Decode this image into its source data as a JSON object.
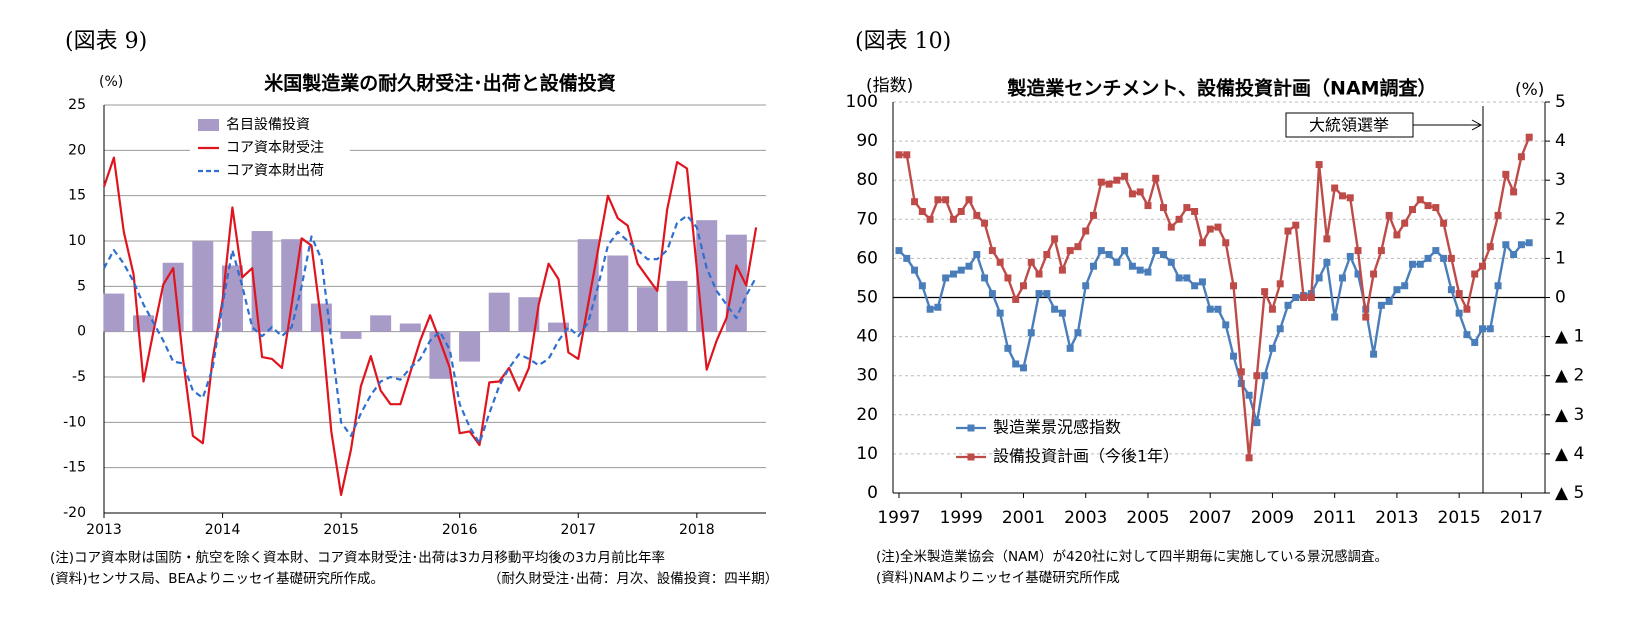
{
  "chart_data": [
    {
      "type": "combo",
      "figure_label": "(図表 9)",
      "title": "米国製造業の耐久財受注･出荷と設備投資",
      "y_label": "(%)",
      "notes": [
        "(注)コア資本財は国防・航空を除く資本財、コア資本財受注･出荷は3カ月移動平均後の3カ月前比年率",
        "(資料)センサス局、BEAよりニッセイ基礎研究所作成。",
        "（耐久財受注･出荷：月次、設備投資：四半期）"
      ],
      "categories": [
        "2013",
        null,
        null,
        null,
        null,
        null,
        null,
        null,
        null,
        null,
        null,
        null,
        "2014",
        null,
        null,
        null,
        null,
        null,
        null,
        null,
        null,
        null,
        null,
        null,
        "2015",
        null,
        null,
        null,
        null,
        null,
        null,
        null,
        null,
        null,
        null,
        null,
        "2016",
        null,
        null,
        null,
        null,
        null,
        null,
        null,
        null,
        null,
        null,
        null,
        "2017",
        null,
        null,
        null,
        null,
        null,
        null,
        null,
        null,
        null,
        null,
        null,
        "2018",
        null,
        null,
        null,
        null,
        null,
        null
      ],
      "ylim": [
        -20,
        25
      ],
      "yticks": [
        -20,
        -15,
        -10,
        -5,
        0,
        5,
        10,
        15,
        20,
        25
      ],
      "grid": true,
      "legend": "upper left",
      "series": [
        {
          "name": "名目設備投資",
          "kind": "bar",
          "color": "#a99bc8",
          "values": [
            null,
            4.2,
            null,
            null,
            1.8,
            null,
            null,
            7.6,
            null,
            null,
            10,
            null,
            null,
            7.3,
            null,
            null,
            11.1,
            null,
            null,
            10.2,
            null,
            null,
            3.1,
            null,
            null,
            -0.8,
            null,
            null,
            1.8,
            null,
            null,
            0.9,
            null,
            null,
            -5.2,
            null,
            null,
            -3.3,
            null,
            null,
            4.3,
            null,
            null,
            3.8,
            null,
            null,
            1.0,
            null,
            null,
            10.2,
            null,
            null,
            8.4,
            null,
            null,
            4.9,
            null,
            null,
            5.6,
            null,
            null,
            12.3,
            null,
            null,
            10.7,
            null,
            null
          ]
        },
        {
          "name": "コア資本財受注",
          "kind": "line",
          "color": "#e0141e",
          "values": [
            16,
            19.2,
            11,
            6.3,
            -5.5,
            0,
            5.2,
            7,
            -3,
            -11.5,
            -12.3,
            -3,
            3.5,
            13.7,
            6,
            7,
            -2.8,
            -3,
            -4,
            3,
            10.3,
            9.5,
            1,
            -11,
            -18,
            -13,
            -6,
            -2.7,
            -6.5,
            -8,
            -8,
            -4.5,
            -1,
            1.8,
            -1,
            -4,
            -11.2,
            -11,
            -12.5,
            -5.6,
            -5.5,
            -4,
            -6.5,
            -4,
            3,
            7.5,
            5.8,
            -2.3,
            -3,
            3,
            9,
            15,
            12.5,
            11.7,
            7.5,
            6,
            4.5,
            13.5,
            18.7,
            18,
            7,
            -4.2,
            -1,
            1.5,
            7.3,
            5.1,
            11.5
          ]
        },
        {
          "name": "コア資本財出荷",
          "kind": "line",
          "dash": true,
          "color": "#2f6fd0",
          "values": [
            7,
            9,
            7.5,
            5.5,
            3,
            1,
            -1,
            -3.3,
            -3.5,
            -6.5,
            -7.3,
            -4,
            3,
            9,
            5,
            0.5,
            -0.5,
            0.5,
            -0.5,
            0.5,
            5,
            10.5,
            8,
            -1,
            -10,
            -11.5,
            -9,
            -7,
            -5.5,
            -5,
            -5.3,
            -4,
            -3,
            -1,
            0,
            -2,
            -8,
            -10.5,
            -12.3,
            -9,
            -6,
            -4,
            -2.5,
            -3,
            -3.7,
            -3,
            -1,
            0.5,
            -0.5,
            1,
            5,
            9.5,
            11,
            10,
            9,
            8,
            8,
            9,
            12,
            12.8,
            11.5,
            7,
            4.5,
            3,
            1.5,
            4,
            6
          ]
        }
      ]
    },
    {
      "type": "line",
      "figure_label": "(図表 10)",
      "title": "製造業センチメント、設備投資計画（NAM調査）",
      "y_label": "(指数)",
      "y2_label": "(%)",
      "annotation": "大統領選挙",
      "notes": [
        "(注)全米製造業協会（NAM）が420社に対して四半期毎に実施している景況感調査。",
        "(資料)NAMよりニッセイ基礎研究所作成"
      ],
      "categories": [
        "1997",
        null,
        null,
        null,
        null,
        null,
        null,
        null,
        "1999",
        null,
        null,
        null,
        null,
        null,
        null,
        null,
        "2001",
        null,
        null,
        null,
        null,
        null,
        null,
        null,
        "2003",
        null,
        null,
        null,
        null,
        null,
        null,
        null,
        "2005",
        null,
        null,
        null,
        null,
        null,
        null,
        null,
        "2007",
        null,
        null,
        null,
        null,
        null,
        null,
        null,
        "2009",
        null,
        null,
        null,
        null,
        null,
        null,
        null,
        "2011",
        null,
        null,
        null,
        null,
        null,
        null,
        null,
        "2013",
        null,
        null,
        null,
        null,
        null,
        null,
        null,
        "2015",
        null,
        null,
        null,
        null,
        null,
        null,
        null,
        "2017",
        null
      ],
      "ylim": [
        0,
        100
      ],
      "yticks": [
        0,
        10,
        20,
        30,
        40,
        50,
        60,
        70,
        80,
        90,
        100
      ],
      "y2lim": [
        -5,
        5
      ],
      "y2ticks": [
        5,
        4,
        3,
        2,
        1,
        0,
        {
          "value": -1,
          "label": "▲ 1"
        },
        {
          "value": -2,
          "label": "▲ 2"
        },
        {
          "value": -3,
          "label": "▲ 3"
        },
        {
          "value": -4,
          "label": "▲ 4"
        },
        {
          "value": -5,
          "label": "▲ 5"
        }
      ],
      "grid": true,
      "legend": "lower left",
      "series": [
        {
          "name": "製造業景況感指数",
          "kind": "line",
          "marker": "square",
          "color": "#4a7ebb",
          "values": [
            62,
            60,
            57,
            53,
            47,
            47.5,
            55,
            56,
            57,
            58,
            61,
            55,
            51,
            46,
            37,
            33,
            32,
            41,
            51,
            51,
            47,
            46,
            37,
            41,
            53,
            58,
            62,
            61,
            59,
            62,
            58,
            57,
            56.5,
            62,
            61,
            59,
            55,
            55,
            53,
            54,
            47,
            47,
            43,
            35,
            28,
            25,
            18,
            30,
            37,
            42,
            48,
            50,
            50.5,
            51,
            55,
            59,
            45,
            55,
            60.5,
            56,
            47,
            35.5,
            48,
            49,
            52,
            53,
            58.5,
            58.5,
            60,
            62,
            60,
            52,
            46,
            40.5,
            38.5,
            42,
            42,
            53,
            63.5,
            61,
            63.5,
            64
          ]
        },
        {
          "name": "設備投資計画（今後1年）",
          "kind": "line",
          "marker": "square",
          "axis": "y2",
          "color": "#be4b48",
          "values": [
            3.65,
            3.65,
            2.45,
            2.2,
            2.0,
            2.5,
            2.5,
            2.0,
            2.2,
            2.5,
            2.1,
            1.9,
            1.2,
            0.9,
            0.5,
            -0.05,
            0.3,
            0.9,
            0.6,
            1.1,
            1.5,
            0.7,
            1.2,
            1.3,
            1.7,
            2.1,
            2.95,
            2.9,
            3.0,
            3.1,
            2.65,
            2.7,
            2.35,
            3.05,
            2.3,
            1.8,
            2.0,
            2.3,
            2.2,
            1.4,
            1.75,
            1.8,
            1.4,
            0.3,
            -1.9,
            -4.1,
            -2.0,
            0.15,
            -0.3,
            0.35,
            1.7,
            1.85,
            0.0,
            0.0,
            3.4,
            1.5,
            2.8,
            2.6,
            2.55,
            1.2,
            -0.5,
            0.6,
            1.2,
            2.1,
            1.6,
            1.9,
            2.25,
            2.5,
            2.35,
            2.3,
            1.9,
            1.0,
            0.1,
            -0.3,
            0.6,
            0.8,
            1.3,
            2.1,
            3.15,
            2.7,
            3.6,
            4.1
          ]
        }
      ]
    }
  ]
}
